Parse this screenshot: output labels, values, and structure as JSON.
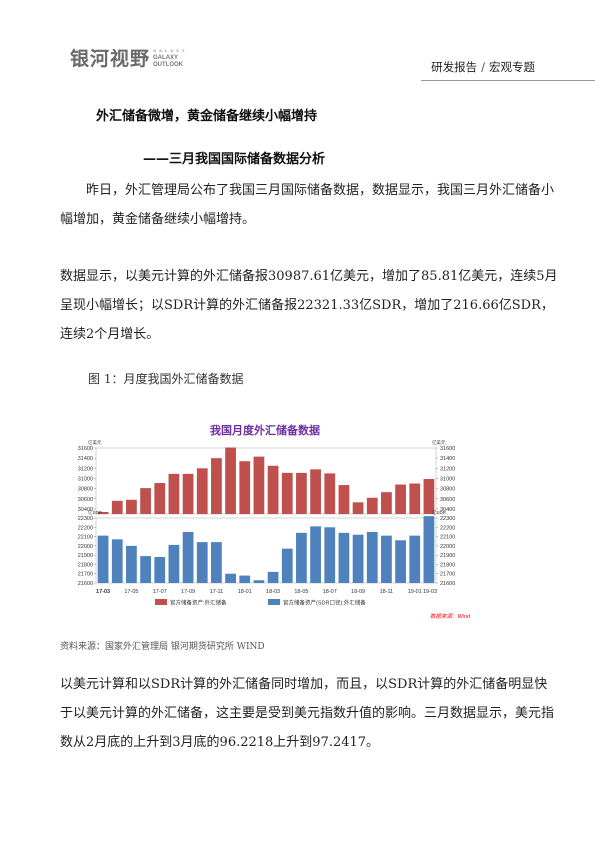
{
  "header": {
    "logo_cn": "银河视野",
    "logo_en_top": "G A L A X Y",
    "logo_en_line1": "GALAXY",
    "logo_en_line2": "OUTLOOK",
    "category": "研发报告",
    "separator": "/",
    "subcategory": "宏观专题"
  },
  "title": {
    "main": "外汇储备微增，黄金储备继续小幅增持",
    "sub": "——三月我国国际储备数据分析"
  },
  "paragraphs": {
    "p1": "昨日，外汇管理局公布了我国三月国际储备数据，数据显示，我国三月外汇储备小幅增加，黄金储备继续小幅增持。",
    "p2": "数据显示，以美元计算的外汇储备报30987.61亿美元，增加了85.81亿美元，连续5月呈现小幅增长；以SDR计算的外汇储备报22321.33亿SDR，增加了216.66亿SDR，连续2个月增长。",
    "p3": "以美元计算和以SDR计算的外汇储备同时增加，而且，以SDR计算的外汇储备明显快于以美元计算的外汇储备，这主要是受到美元指数升值的影响。三月数据显示，美元指数从2月底的上升到3月底的96.2218上升到97.2417。"
  },
  "figure": {
    "caption": "图 1：月度我国外汇储备数据",
    "source": "资料来源：国家外汇管理局  银河期货研究所 WIND"
  },
  "colors": {
    "top_bars": "#c0504d",
    "bottom_bars": "#4f81bd",
    "chart_title": "#7030a0",
    "source_note": "#ff0000"
  },
  "chart_data": [
    {
      "type": "bar",
      "title": "我国月度外汇储备数据",
      "series": [
        {
          "name": "官方储备资产:外汇储备",
          "values": [
            30340,
            30560,
            30580,
            30810,
            30910,
            31090,
            31090,
            31200,
            31400,
            31610,
            31340,
            31430,
            31250,
            31110,
            31110,
            31180,
            31100,
            30870,
            30530,
            30620,
            30730,
            30880,
            30900,
            30990
          ]
        }
      ],
      "categories": [
        "17-03",
        "17-04",
        "17-05",
        "17-06",
        "17-07",
        "17-08",
        "17-09",
        "17-10",
        "17-11",
        "17-12",
        "18-01",
        "18-02",
        "18-03",
        "18-04",
        "18-05",
        "18-06",
        "18-07",
        "18-08",
        "18-09",
        "18-10",
        "18-11",
        "18-12",
        "19-01",
        "19-02"
      ],
      "unit_left": "亿美元",
      "unit_right": "亿美元",
      "ylim": [
        30300,
        31600
      ],
      "yticks": [
        30400,
        30600,
        30800,
        31000,
        31200,
        31400,
        31600
      ],
      "ytick_labels": [
        "30400",
        "30600",
        "30800",
        "31000",
        "31200",
        "31400",
        "31600"
      ],
      "yticks_right": [
        30400,
        30600,
        30800,
        31000,
        31200,
        31400,
        31600
      ],
      "ytick_labels_right": [
        "30400",
        "30600",
        "30800",
        "31000",
        "31200",
        "31400",
        "31600"
      ]
    },
    {
      "type": "bar",
      "series": [
        {
          "name": "官方储备资产(SDR口径):外汇储备",
          "values": [
            22110,
            22070,
            22000,
            21890,
            21880,
            22010,
            22150,
            22040,
            22040,
            21700,
            21680,
            21630,
            21720,
            21970,
            22140,
            22210,
            22200,
            22140,
            22120,
            22150,
            22110,
            22060,
            22110,
            22320
          ]
        }
      ],
      "categories": [
        "17-03",
        "17-04",
        "17-05",
        "17-06",
        "17-07",
        "17-08",
        "17-09",
        "17-10",
        "17-11",
        "17-12",
        "18-01",
        "18-02",
        "18-03",
        "18-04",
        "18-05",
        "18-06",
        "18-07",
        "18-08",
        "18-09",
        "18-10",
        "18-11",
        "18-12",
        "19-01",
        "19-02"
      ],
      "unit_left": "亿SDR",
      "unit_right": "亿SDR",
      "ylim": [
        21600,
        22300
      ],
      "yticks": [
        21600,
        21700,
        21800,
        21900,
        22000,
        22100,
        22200,
        22300
      ],
      "ytick_labels": [
        "21600",
        "21700",
        "21800",
        "21900",
        "22000",
        "22100",
        "22200",
        "22300"
      ],
      "yticks_right": [
        21600,
        21700,
        21800,
        21900,
        22000,
        22100,
        22200,
        22300
      ],
      "ytick_labels_right": [
        "21600",
        "21700",
        "21800",
        "21900",
        "22000",
        "22100",
        "22200",
        "22300"
      ],
      "x_tick_labels": [
        "17-03",
        "17-05",
        "17-07",
        "17-09",
        "17-11",
        "18-01",
        "18-03",
        "18-05",
        "18-07",
        "18-09",
        "18-11",
        "19-01",
        "19-03"
      ],
      "source_note": "数据来源：Wind"
    }
  ]
}
